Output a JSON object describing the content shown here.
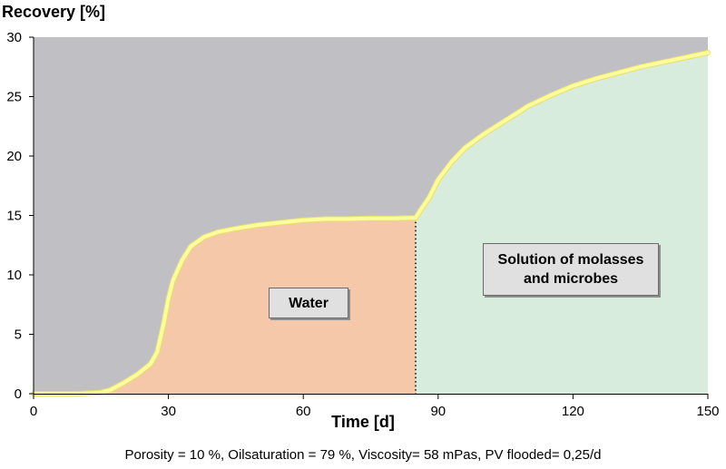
{
  "chart_data": {
    "type": "area",
    "ylabel": "Recovery [%]",
    "xlabel": "Time [d]",
    "footnote": "Porosity = 10 %, Oilsaturation = 79 %, Viscosity= 58 mPas, PV flooded= 0,25/d",
    "xlim": [
      0,
      150
    ],
    "ylim": [
      0,
      30
    ],
    "xticks": [
      0,
      30,
      60,
      90,
      120,
      150
    ],
    "yticks": [
      0,
      5,
      10,
      15,
      20,
      25,
      30
    ],
    "grid": false,
    "switch_x": 85,
    "regions": [
      {
        "label": "Water",
        "x_range": [
          0,
          85
        ]
      },
      {
        "label": "Solution of molasses and microbes",
        "x_range": [
          85,
          150
        ]
      }
    ],
    "series": [
      {
        "x": [
          0,
          10,
          15,
          17,
          20,
          23,
          26,
          27.5,
          29,
          30,
          31,
          33,
          35,
          38,
          41,
          45,
          50,
          55,
          60,
          65,
          70,
          75,
          80,
          85,
          86,
          88,
          90,
          93,
          96,
          100,
          105,
          110,
          115,
          120,
          125,
          130,
          135,
          140,
          145,
          150
        ],
        "y": [
          0,
          0,
          0.1,
          0.3,
          0.9,
          1.6,
          2.5,
          3.5,
          6.0,
          8.0,
          9.5,
          11.2,
          12.4,
          13.2,
          13.6,
          13.9,
          14.2,
          14.4,
          14.6,
          14.7,
          14.7,
          14.75,
          14.75,
          14.8,
          15.4,
          16.5,
          18.0,
          19.5,
          20.7,
          21.8,
          23.0,
          24.2,
          25.1,
          25.9,
          26.5,
          27.0,
          27.5,
          27.9,
          28.3,
          28.7
        ]
      }
    ],
    "colors": {
      "background": "#c0c0c4",
      "water_fill": "#f5c8a9",
      "solution_fill": "#d7ecdd",
      "line": "#fcfc9c",
      "line_edge": "#e6e070",
      "divider": "#000000"
    }
  }
}
